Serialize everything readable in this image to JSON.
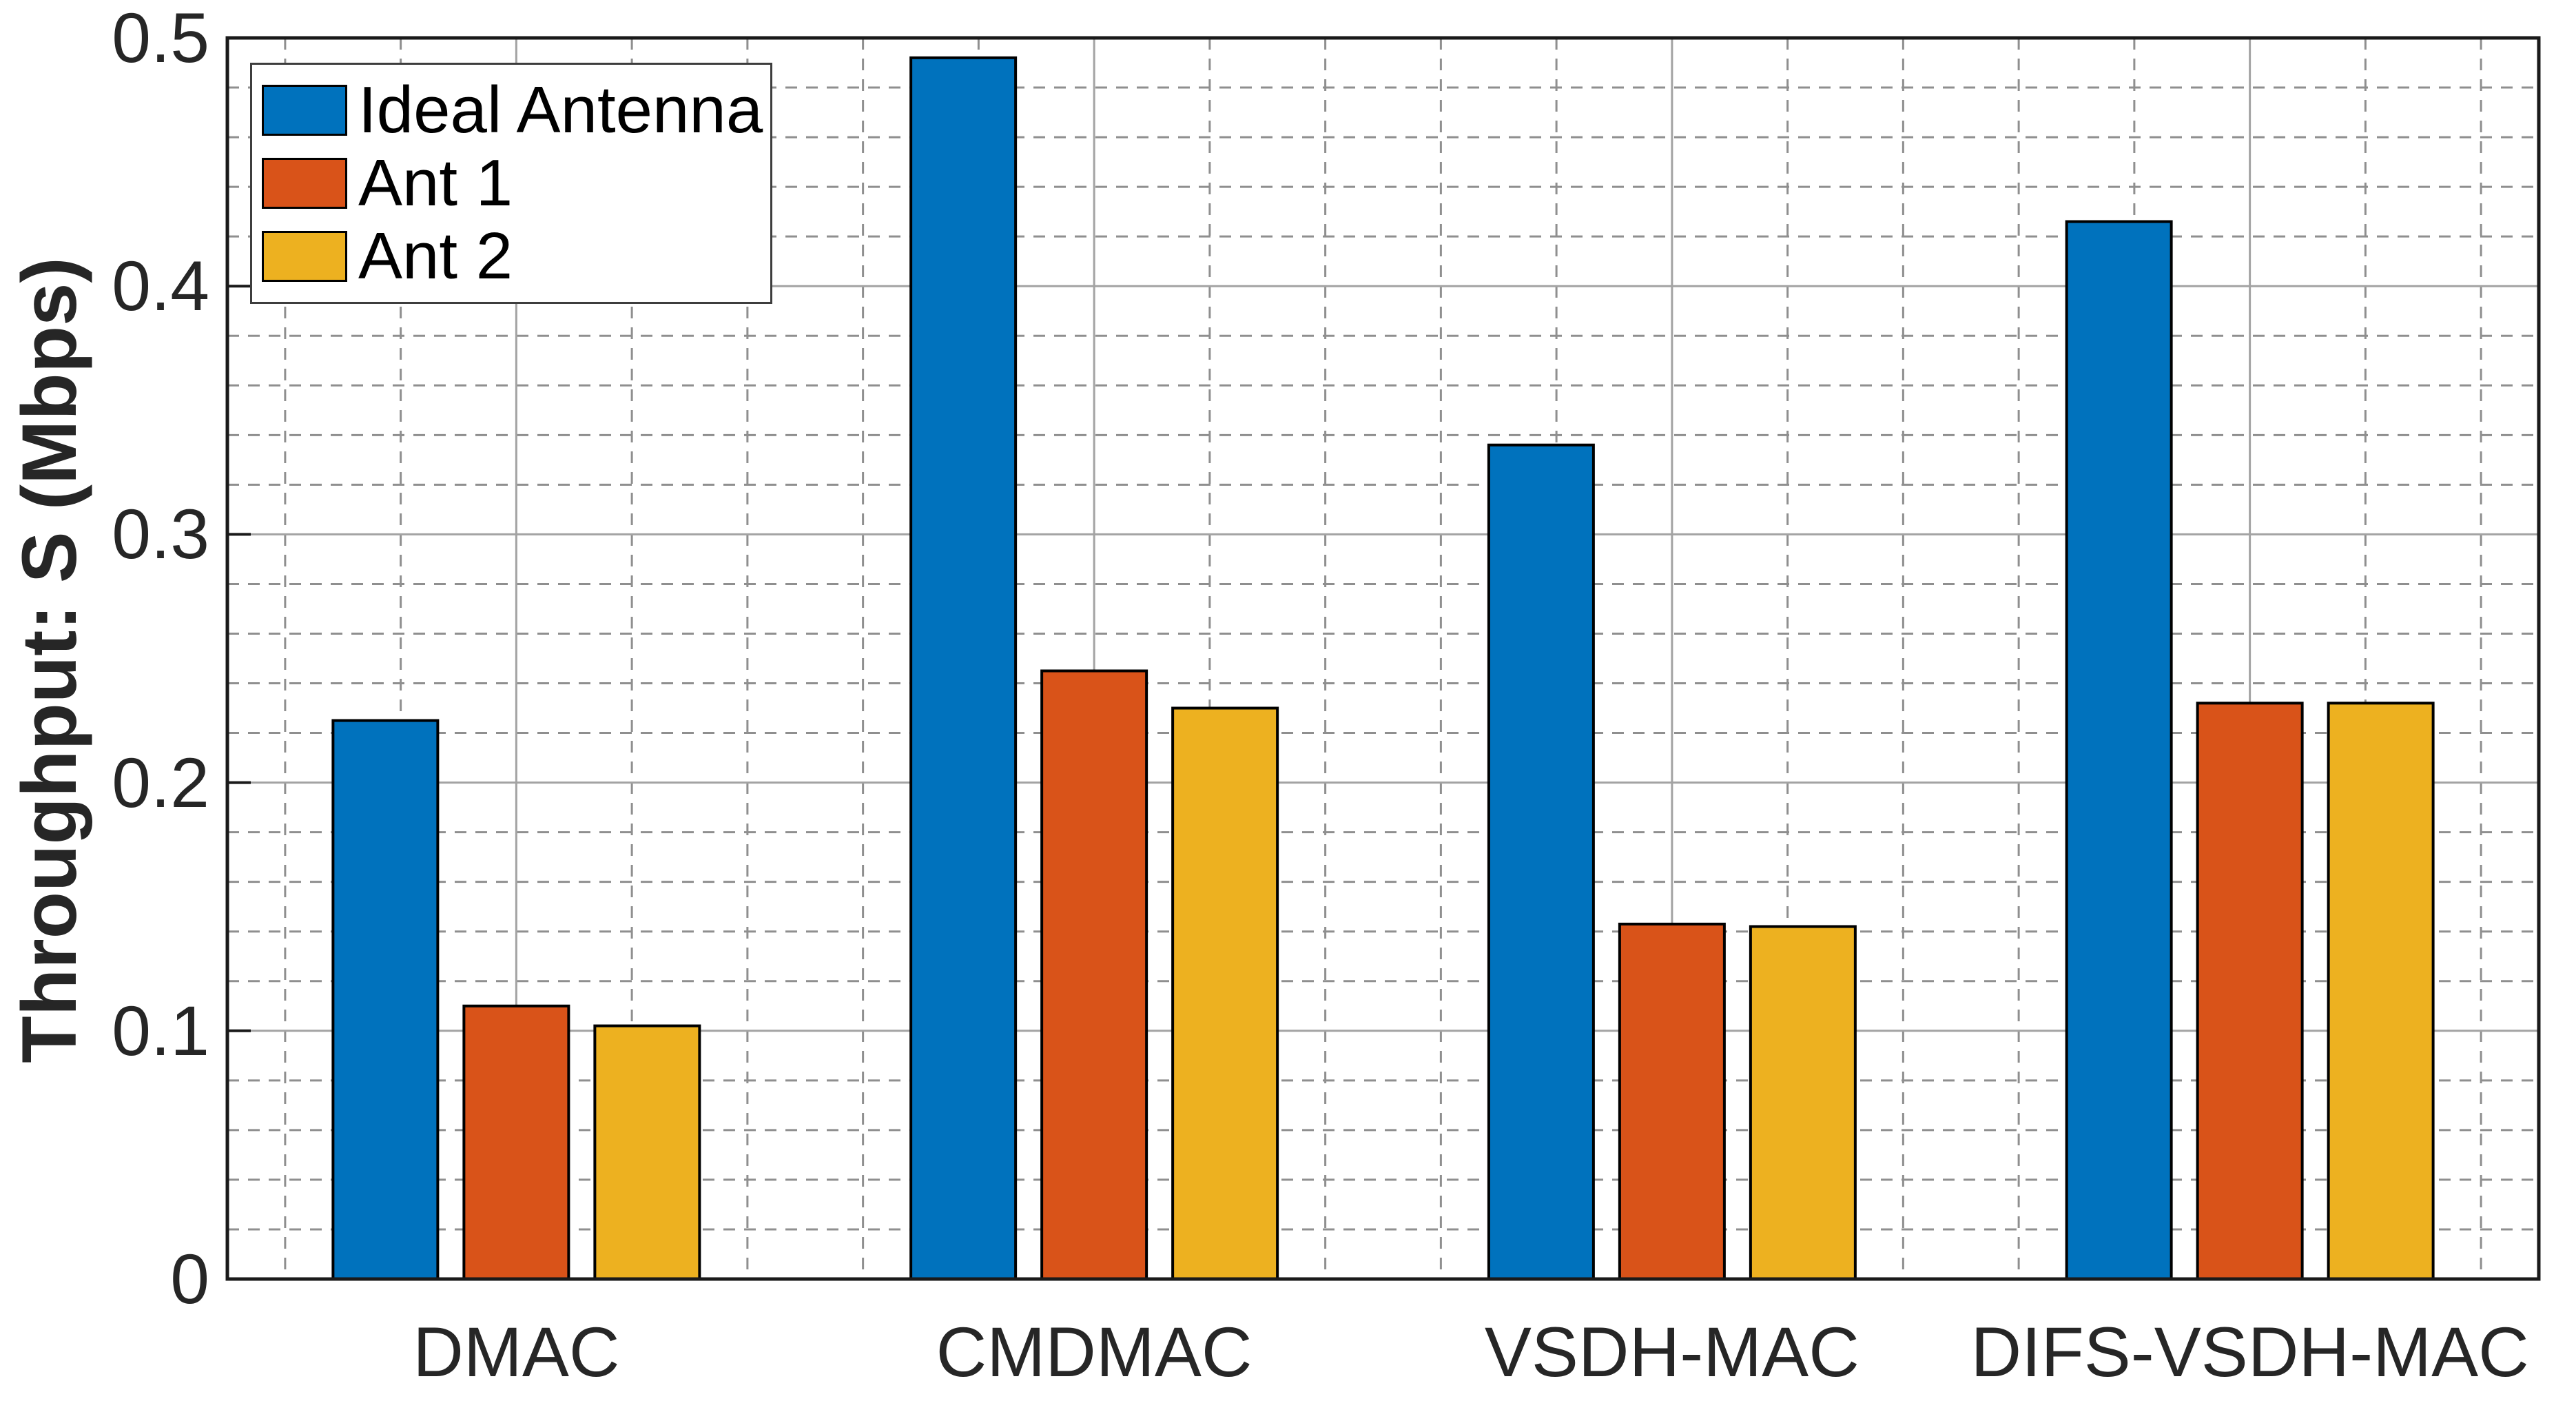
{
  "figure": {
    "background_color": "#ffffff",
    "axis_color": "#1a1a1a",
    "tick_label_color": "#262626"
  },
  "chart_data": {
    "type": "bar",
    "title": "",
    "xlabel": "",
    "ylabel": "Throughput: S (Mbps)",
    "categories": [
      "DMAC",
      "CMDMAC",
      "VSDH-MAC",
      "DIFS-VSDH-MAC"
    ],
    "series": [
      {
        "name": "Ideal Antenna",
        "color": "#0072BD",
        "values": [
          0.225,
          0.492,
          0.336,
          0.426
        ]
      },
      {
        "name": "Ant 1",
        "color": "#D95319",
        "values": [
          0.11,
          0.245,
          0.143,
          0.232
        ]
      },
      {
        "name": "Ant 2",
        "color": "#EDB120",
        "values": [
          0.102,
          0.23,
          0.142,
          0.232
        ]
      }
    ],
    "ylim": [
      0,
      0.5
    ],
    "y_ticks": [
      "0",
      "0.1",
      "0.2",
      "0.3",
      "0.4",
      "0.5"
    ],
    "y_major_step": 0.1,
    "y_minor_step": 0.02,
    "grid": "major solid, minor dashed, both axes",
    "grid_major_color": "#a3a3a3",
    "grid_minor_color": "#8f8f8f",
    "bar_edge_color": "#000000",
    "legend_position": "top-left inside plot"
  }
}
